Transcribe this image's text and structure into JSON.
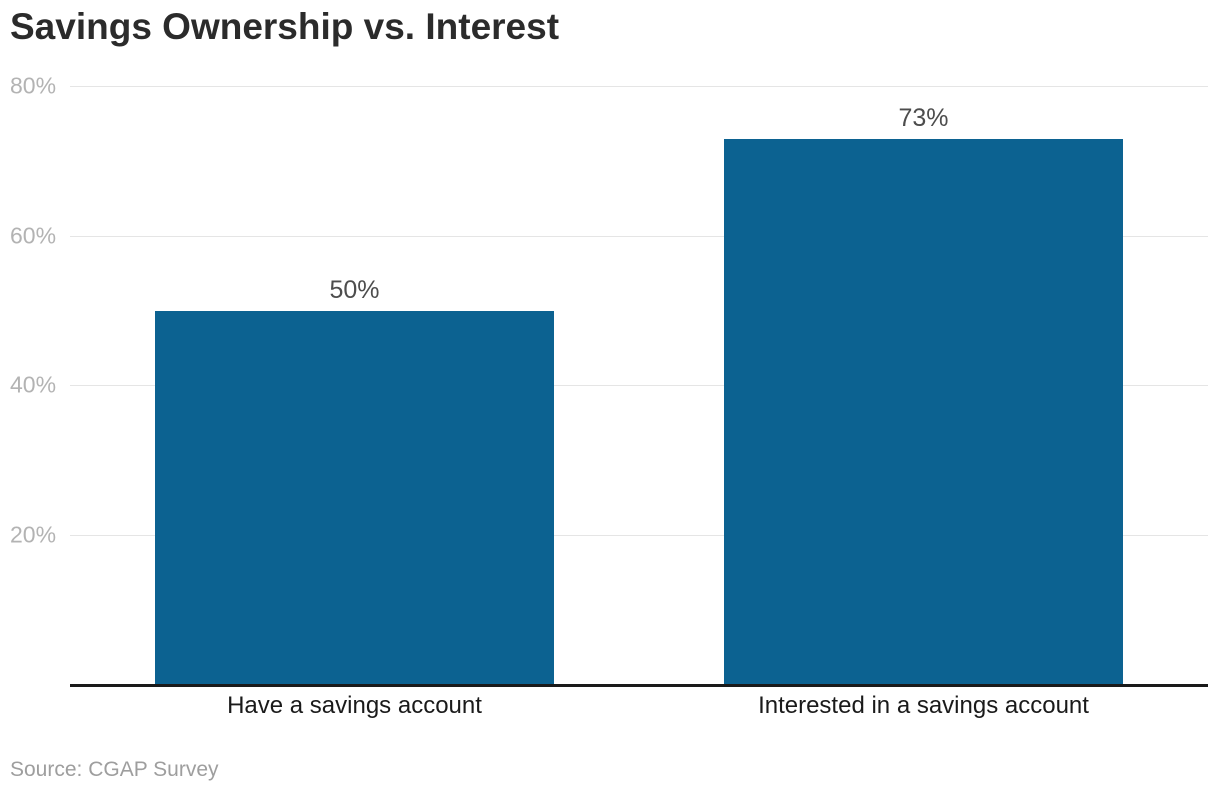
{
  "chart_data": {
    "type": "bar",
    "title": "Savings Ownership vs. Interest",
    "categories": [
      "Have a savings account",
      "Interested in a savings account"
    ],
    "values": [
      50,
      73
    ],
    "value_labels": [
      "50%",
      "73%"
    ],
    "yticks": [
      20,
      40,
      60,
      80
    ],
    "ytick_labels": [
      "20%",
      "40%",
      "60%",
      "80%"
    ],
    "ylim": [
      0,
      80
    ],
    "bar_color": "#0c6291",
    "grid": "horizontal",
    "legend": false,
    "source": "Source: CGAP Survey"
  }
}
